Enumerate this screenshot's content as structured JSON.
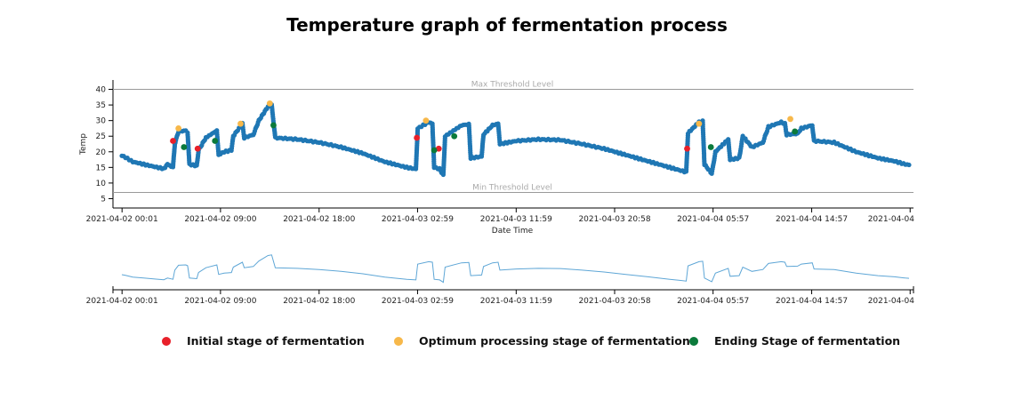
{
  "chart_data": {
    "type": "scatter",
    "title": "Temperature graph of fermentation process",
    "xlabel": "Date Time",
    "ylabel": "Temp",
    "ylim": [
      2,
      43
    ],
    "xlim": [
      "2021-04-02 00:00",
      "2021-04-04 23:50"
    ],
    "y_ticks": [
      5,
      10,
      15,
      20,
      25,
      30,
      35,
      40
    ],
    "x_ticks": [
      {
        "at": "2021-04-02 00:01",
        "label": "2021-04-02 00:01"
      },
      {
        "at": "2021-04-02 09:00",
        "label": "2021-04-02 09:00"
      },
      {
        "at": "2021-04-02 18:00",
        "label": "2021-04-02 18:00"
      },
      {
        "at": "2021-04-03 02:59",
        "label": "2021-04-03 02:59"
      },
      {
        "at": "2021-04-03 11:59",
        "label": "2021-04-03 11:59"
      },
      {
        "at": "2021-04-03 20:58",
        "label": "2021-04-03 20:58"
      },
      {
        "at": "2021-04-04 05:57",
        "label": "2021-04-04 05:57"
      },
      {
        "at": "2021-04-04 14:57",
        "label": "2021-04-04 14:57"
      },
      {
        "at": "2021-04-04 23:56",
        "label": "2021-04-04"
      }
    ],
    "thresholds": [
      {
        "label": "Max Threshold Level",
        "value": 40
      },
      {
        "label": "Min Threshold Level",
        "value": 7
      }
    ],
    "temperature_series": {
      "color": "#1f77b4",
      "points": [
        [
          "2021-04-02 00:00",
          18.8
        ],
        [
          "2021-04-02 00:20",
          18.2
        ],
        [
          "2021-04-02 01:00",
          16.8
        ],
        [
          "2021-04-02 02:00",
          16.0
        ],
        [
          "2021-04-02 03:00",
          15.2
        ],
        [
          "2021-04-02 03:50",
          14.6
        ],
        [
          "2021-04-02 04:10",
          16.0
        ],
        [
          "2021-04-02 04:40",
          15.0
        ],
        [
          "2021-04-02 04:50",
          22.5
        ],
        [
          "2021-04-02 05:10",
          26.5
        ],
        [
          "2021-04-02 05:50",
          26.8
        ],
        [
          "2021-04-02 06:00",
          26.2
        ],
        [
          "2021-04-02 06:10",
          16.0
        ],
        [
          "2021-04-02 06:50",
          15.5
        ],
        [
          "2021-04-02 07:00",
          20.5
        ],
        [
          "2021-04-02 07:40",
          24.5
        ],
        [
          "2021-04-02 08:40",
          26.8
        ],
        [
          "2021-04-02 08:50",
          19.0
        ],
        [
          "2021-04-02 09:20",
          20.0
        ],
        [
          "2021-04-02 10:00",
          20.5
        ],
        [
          "2021-04-02 10:10",
          25.0
        ],
        [
          "2021-04-02 11:00",
          29.0
        ],
        [
          "2021-04-02 11:10",
          24.5
        ],
        [
          "2021-04-02 12:00",
          25.5
        ],
        [
          "2021-04-02 12:30",
          30.0
        ],
        [
          "2021-04-02 13:20",
          34.5
        ],
        [
          "2021-04-02 13:40",
          35.0
        ],
        [
          "2021-04-02 14:00",
          24.5
        ],
        [
          "2021-04-02 16:00",
          24.0
        ],
        [
          "2021-04-02 18:00",
          23.0
        ],
        [
          "2021-04-02 20:00",
          21.5
        ],
        [
          "2021-04-02 22:00",
          19.5
        ],
        [
          "2021-04-03 00:00",
          16.8
        ],
        [
          "2021-04-03 02:00",
          15.0
        ],
        [
          "2021-04-03 02:50",
          14.5
        ],
        [
          "2021-04-03 03:00",
          27.5
        ],
        [
          "2021-04-03 04:00",
          29.5
        ],
        [
          "2021-04-03 04:20",
          29.0
        ],
        [
          "2021-04-03 04:30",
          15.0
        ],
        [
          "2021-04-03 05:00",
          14.5
        ],
        [
          "2021-04-03 05:20",
          12.5
        ],
        [
          "2021-04-03 05:30",
          25.0
        ],
        [
          "2021-04-03 07:00",
          28.5
        ],
        [
          "2021-04-03 07:40",
          28.8
        ],
        [
          "2021-04-03 07:50",
          18.0
        ],
        [
          "2021-04-03 08:50",
          18.5
        ],
        [
          "2021-04-03 09:00",
          25.5
        ],
        [
          "2021-04-03 09:50",
          28.5
        ],
        [
          "2021-04-03 10:20",
          29.0
        ],
        [
          "2021-04-03 10:30",
          22.5
        ],
        [
          "2021-04-03 12:00",
          23.5
        ],
        [
          "2021-04-03 14:00",
          24.0
        ],
        [
          "2021-04-03 16:00",
          23.8
        ],
        [
          "2021-04-03 18:00",
          22.5
        ],
        [
          "2021-04-03 20:00",
          21.0
        ],
        [
          "2021-04-03 22:00",
          19.0
        ],
        [
          "2021-04-04 00:00",
          17.0
        ],
        [
          "2021-04-04 02:00",
          15.0
        ],
        [
          "2021-04-04 03:30",
          13.5
        ],
        [
          "2021-04-04 03:40",
          26.0
        ],
        [
          "2021-04-04 04:40",
          29.5
        ],
        [
          "2021-04-04 05:00",
          29.8
        ],
        [
          "2021-04-04 05:10",
          16.0
        ],
        [
          "2021-04-04 05:50",
          13.0
        ],
        [
          "2021-04-04 06:10",
          20.0
        ],
        [
          "2021-04-04 07:20",
          24.0
        ],
        [
          "2021-04-04 07:30",
          17.5
        ],
        [
          "2021-04-04 08:20",
          18.0
        ],
        [
          "2021-04-04 08:40",
          25.0
        ],
        [
          "2021-04-04 09:30",
          21.5
        ],
        [
          "2021-04-04 10:30",
          23.0
        ],
        [
          "2021-04-04 11:00",
          28.0
        ],
        [
          "2021-04-04 12:10",
          29.5
        ],
        [
          "2021-04-04 12:30",
          29.0
        ],
        [
          "2021-04-04 12:40",
          25.5
        ],
        [
          "2021-04-04 13:40",
          25.8
        ],
        [
          "2021-04-04 14:00",
          27.5
        ],
        [
          "2021-04-04 15:00",
          28.5
        ],
        [
          "2021-04-04 15:10",
          23.5
        ],
        [
          "2021-04-04 17:00",
          23.0
        ],
        [
          "2021-04-04 19:00",
          20.0
        ],
        [
          "2021-04-04 21:00",
          18.0
        ],
        [
          "2021-04-04 22:30",
          17.0
        ],
        [
          "2021-04-04 23:30",
          16.0
        ],
        [
          "2021-04-04 23:50",
          15.8
        ]
      ]
    },
    "stage_markers": {
      "initial": {
        "label": "Initial stage of fermentation",
        "color": "#e8202a",
        "points": [
          [
            "2021-04-02 04:40",
            23.5
          ],
          [
            "2021-04-02 06:55",
            21.0
          ],
          [
            "2021-04-03 02:55",
            24.5
          ],
          [
            "2021-04-03 04:55",
            21.0
          ],
          [
            "2021-04-04 03:35",
            21.0
          ]
        ]
      },
      "optimum": {
        "label": "Optimum processing stage of fermentation",
        "color": "#f7b84a",
        "points": [
          [
            "2021-04-02 05:10",
            27.5
          ],
          [
            "2021-04-02 10:50",
            29.0
          ],
          [
            "2021-04-02 13:30",
            35.5
          ],
          [
            "2021-04-03 03:45",
            30.0
          ],
          [
            "2021-04-04 04:40",
            29.0
          ],
          [
            "2021-04-04 13:00",
            30.5
          ]
        ]
      },
      "ending": {
        "label": "Ending Stage of fermentation",
        "color": "#0b7a3b",
        "points": [
          [
            "2021-04-02 05:40",
            21.5
          ],
          [
            "2021-04-02 08:30",
            23.5
          ],
          [
            "2021-04-02 13:50",
            28.5
          ],
          [
            "2021-04-03 04:30",
            20.5
          ],
          [
            "2021-04-03 06:20",
            25.0
          ],
          [
            "2021-04-04 05:45",
            21.5
          ],
          [
            "2021-04-04 13:25",
            26.5
          ]
        ]
      }
    },
    "overview_x_ticks": [
      {
        "at": "2021-04-02 00:01",
        "label": "2021-04-02 00:01"
      },
      {
        "at": "2021-04-02 09:00",
        "label": "2021-04-02 09:00"
      },
      {
        "at": "2021-04-02 18:00",
        "label": "2021-04-02 18:00"
      },
      {
        "at": "2021-04-03 02:59",
        "label": "2021-04-03 02:59"
      },
      {
        "at": "2021-04-03 11:59",
        "label": "2021-04-03 11:59"
      },
      {
        "at": "2021-04-03 20:58",
        "label": "2021-04-03 20:58"
      },
      {
        "at": "2021-04-04 05:57",
        "label": "2021-04-04 05:57"
      },
      {
        "at": "2021-04-04 14:57",
        "label": "2021-04-04 14:57"
      },
      {
        "at": "2021-04-04 23:56",
        "label": "2021-04-04"
      }
    ],
    "grid": false,
    "legend_placement": "bottom"
  }
}
